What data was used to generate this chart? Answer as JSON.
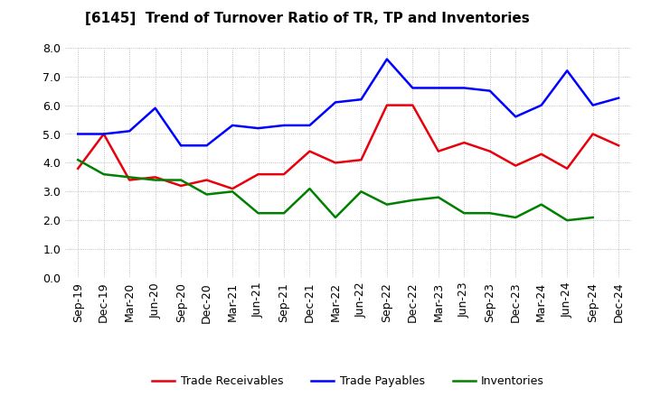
{
  "title": "[6145]  Trend of Turnover Ratio of TR, TP and Inventories",
  "labels": [
    "Sep-19",
    "Dec-19",
    "Mar-20",
    "Jun-20",
    "Sep-20",
    "Dec-20",
    "Mar-21",
    "Jun-21",
    "Sep-21",
    "Dec-21",
    "Mar-22",
    "Jun-22",
    "Sep-22",
    "Dec-22",
    "Mar-23",
    "Jun-23",
    "Sep-23",
    "Dec-23",
    "Mar-24",
    "Jun-24",
    "Sep-24",
    "Dec-24"
  ],
  "trade_receivables": [
    3.8,
    5.0,
    3.4,
    3.5,
    3.2,
    3.4,
    3.1,
    3.6,
    3.6,
    4.4,
    4.0,
    4.1,
    6.0,
    6.0,
    4.4,
    4.7,
    4.4,
    3.9,
    4.3,
    3.8,
    5.0,
    4.6
  ],
  "trade_payables": [
    5.0,
    5.0,
    5.1,
    5.9,
    4.6,
    4.6,
    5.3,
    5.2,
    5.3,
    5.3,
    6.1,
    6.2,
    7.6,
    6.6,
    6.6,
    6.6,
    6.5,
    5.6,
    6.0,
    7.2,
    6.0,
    6.25
  ],
  "inventories": [
    4.1,
    3.6,
    3.5,
    3.4,
    3.4,
    2.9,
    3.0,
    2.25,
    2.25,
    3.1,
    2.1,
    3.0,
    2.55,
    2.7,
    2.8,
    2.25,
    2.25,
    2.1,
    2.55,
    2.0,
    2.1,
    null
  ],
  "tr_color": "#e8000d",
  "tp_color": "#0000ff",
  "inv_color": "#008000",
  "ylim": [
    0.0,
    8.0
  ],
  "yticks": [
    0.0,
    1.0,
    2.0,
    3.0,
    4.0,
    5.0,
    6.0,
    7.0,
    8.0
  ],
  "legend_labels": [
    "Trade Receivables",
    "Trade Payables",
    "Inventories"
  ],
  "background_color": "#ffffff",
  "title_fontsize": 11,
  "axis_fontsize": 9,
  "legend_fontsize": 9
}
